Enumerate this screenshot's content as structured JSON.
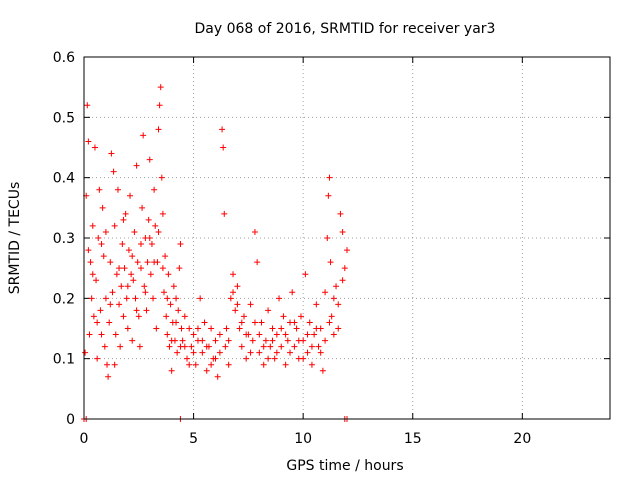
{
  "chart_data": {
    "type": "scatter",
    "title": "Day 068 of 2016, SRMTID for receiver yar3",
    "xlabel": "GPS time / hours",
    "ylabel": "SRMTID / TECUs",
    "xlim": [
      0,
      24
    ],
    "ylim": [
      0,
      0.6
    ],
    "xticks": [
      0,
      5,
      10,
      15,
      20
    ],
    "yticks": [
      0,
      0.1,
      0.2,
      0.3,
      0.4,
      0.5,
      0.6
    ],
    "xtick_labels": [
      "0",
      "5",
      "10",
      "15",
      "20"
    ],
    "ytick_labels": [
      "0",
      "0.1",
      "0.2",
      "0.3",
      "0.4",
      "0.5",
      "0.6"
    ],
    "grid": true,
    "marker": "+",
    "color": "#ff0000",
    "series": [
      {
        "name": "SRMTID",
        "points": [
          [
            0.0,
            0.0
          ],
          [
            0.1,
            0.0
          ],
          [
            4.4,
            0.0
          ],
          [
            11.9,
            0.0
          ],
          [
            12.0,
            0.0
          ],
          [
            0.05,
            0.11
          ],
          [
            0.1,
            0.37
          ],
          [
            0.15,
            0.52
          ],
          [
            0.2,
            0.46
          ],
          [
            0.25,
            0.14
          ],
          [
            0.3,
            0.26
          ],
          [
            0.35,
            0.2
          ],
          [
            0.4,
            0.32
          ],
          [
            0.45,
            0.17
          ],
          [
            0.5,
            0.45
          ],
          [
            0.55,
            0.23
          ],
          [
            0.6,
            0.1
          ],
          [
            0.65,
            0.3
          ],
          [
            0.7,
            0.38
          ],
          [
            0.75,
            0.18
          ],
          [
            0.8,
            0.14
          ],
          [
            0.85,
            0.35
          ],
          [
            0.9,
            0.27
          ],
          [
            0.95,
            0.12
          ],
          [
            1.0,
            0.2
          ],
          [
            1.05,
            0.09
          ],
          [
            1.1,
            0.07
          ],
          [
            1.15,
            0.16
          ],
          [
            1.2,
            0.26
          ],
          [
            1.25,
            0.44
          ],
          [
            1.3,
            0.21
          ],
          [
            1.35,
            0.41
          ],
          [
            1.4,
            0.32
          ],
          [
            1.45,
            0.14
          ],
          [
            1.5,
            0.24
          ],
          [
            1.55,
            0.38
          ],
          [
            1.6,
            0.19
          ],
          [
            1.65,
            0.12
          ],
          [
            1.7,
            0.22
          ],
          [
            1.75,
            0.29
          ],
          [
            1.8,
            0.17
          ],
          [
            1.85,
            0.25
          ],
          [
            1.9,
            0.34
          ],
          [
            1.95,
            0.2
          ],
          [
            2.0,
            0.15
          ],
          [
            2.05,
            0.28
          ],
          [
            2.1,
            0.37
          ],
          [
            2.15,
            0.24
          ],
          [
            2.2,
            0.13
          ],
          [
            2.25,
            0.23
          ],
          [
            2.3,
            0.31
          ],
          [
            2.35,
            0.2
          ],
          [
            2.4,
            0.42
          ],
          [
            2.45,
            0.26
          ],
          [
            2.5,
            0.17
          ],
          [
            2.55,
            0.12
          ],
          [
            2.6,
            0.29
          ],
          [
            2.65,
            0.35
          ],
          [
            2.7,
            0.47
          ],
          [
            2.75,
            0.22
          ],
          [
            2.8,
            0.3
          ],
          [
            2.85,
            0.18
          ],
          [
            2.9,
            0.26
          ],
          [
            2.95,
            0.33
          ],
          [
            3.0,
            0.43
          ],
          [
            3.05,
            0.24
          ],
          [
            3.1,
            0.29
          ],
          [
            3.15,
            0.2
          ],
          [
            3.2,
            0.38
          ],
          [
            3.25,
            0.32
          ],
          [
            3.3,
            0.15
          ],
          [
            3.35,
            0.26
          ],
          [
            3.4,
            0.48
          ],
          [
            3.45,
            0.52
          ],
          [
            3.5,
            0.55
          ],
          [
            3.55,
            0.4
          ],
          [
            3.6,
            0.34
          ],
          [
            3.65,
            0.21
          ],
          [
            3.7,
            0.27
          ],
          [
            3.75,
            0.17
          ],
          [
            3.8,
            0.14
          ],
          [
            3.85,
            0.24
          ],
          [
            3.9,
            0.12
          ],
          [
            3.95,
            0.19
          ],
          [
            4.0,
            0.08
          ],
          [
            4.05,
            0.16
          ],
          [
            4.1,
            0.22
          ],
          [
            4.15,
            0.13
          ],
          [
            4.2,
            0.2
          ],
          [
            4.25,
            0.11
          ],
          [
            4.3,
            0.18
          ],
          [
            4.35,
            0.25
          ],
          [
            4.4,
            0.29
          ],
          [
            4.45,
            0.15
          ],
          [
            0.2,
            0.28
          ],
          [
            0.4,
            0.24
          ],
          [
            0.6,
            0.16
          ],
          [
            0.8,
            0.29
          ],
          [
            1.0,
            0.31
          ],
          [
            1.2,
            0.19
          ],
          [
            1.4,
            0.09
          ],
          [
            1.6,
            0.25
          ],
          [
            1.8,
            0.33
          ],
          [
            2.0,
            0.22
          ],
          [
            2.2,
            0.27
          ],
          [
            2.4,
            0.18
          ],
          [
            2.6,
            0.25
          ],
          [
            2.8,
            0.21
          ],
          [
            3.0,
            0.3
          ],
          [
            3.2,
            0.26
          ],
          [
            3.4,
            0.31
          ],
          [
            3.6,
            0.25
          ],
          [
            3.8,
            0.2
          ],
          [
            4.0,
            0.13
          ],
          [
            4.2,
            0.16
          ],
          [
            4.4,
            0.12
          ],
          [
            4.5,
            0.13
          ],
          [
            4.6,
            0.17
          ],
          [
            4.7,
            0.1
          ],
          [
            4.8,
            0.15
          ],
          [
            4.9,
            0.12
          ],
          [
            5.0,
            0.14
          ],
          [
            5.1,
            0.09
          ],
          [
            5.2,
            0.13
          ],
          [
            5.3,
            0.2
          ],
          [
            5.4,
            0.11
          ],
          [
            5.5,
            0.16
          ],
          [
            5.6,
            0.08
          ],
          [
            5.7,
            0.12
          ],
          [
            5.8,
            0.15
          ],
          [
            5.9,
            0.1
          ],
          [
            6.0,
            0.13
          ],
          [
            6.1,
            0.07
          ],
          [
            6.2,
            0.11
          ],
          [
            6.3,
            0.48
          ],
          [
            6.35,
            0.45
          ],
          [
            6.4,
            0.34
          ],
          [
            6.45,
            0.12
          ],
          [
            6.5,
            0.15
          ],
          [
            6.6,
            0.09
          ],
          [
            6.7,
            0.2
          ],
          [
            6.8,
            0.24
          ],
          [
            6.9,
            0.18
          ],
          [
            7.0,
            0.22
          ],
          [
            7.1,
            0.15
          ],
          [
            7.2,
            0.12
          ],
          [
            7.3,
            0.17
          ],
          [
            7.4,
            0.1
          ],
          [
            7.5,
            0.14
          ],
          [
            7.6,
            0.19
          ],
          [
            7.7,
            0.13
          ],
          [
            7.8,
            0.31
          ],
          [
            7.9,
            0.26
          ],
          [
            8.0,
            0.11
          ],
          [
            8.1,
            0.16
          ],
          [
            8.2,
            0.09
          ],
          [
            8.3,
            0.13
          ],
          [
            8.4,
            0.18
          ],
          [
            8.5,
            0.12
          ],
          [
            8.6,
            0.15
          ],
          [
            8.7,
            0.1
          ],
          [
            8.8,
            0.14
          ],
          [
            8.9,
            0.2
          ],
          [
            9.0,
            0.12
          ],
          [
            9.1,
            0.17
          ],
          [
            9.2,
            0.09
          ],
          [
            9.3,
            0.13
          ],
          [
            9.4,
            0.16
          ],
          [
            9.5,
            0.21
          ],
          [
            9.6,
            0.12
          ],
          [
            9.7,
            0.15
          ],
          [
            9.8,
            0.1
          ],
          [
            9.9,
            0.17
          ],
          [
            10.0,
            0.13
          ],
          [
            10.1,
            0.24
          ],
          [
            10.2,
            0.11
          ],
          [
            10.3,
            0.16
          ],
          [
            10.4,
            0.09
          ],
          [
            10.5,
            0.14
          ],
          [
            10.6,
            0.19
          ],
          [
            10.7,
            0.12
          ],
          [
            10.8,
            0.15
          ],
          [
            10.9,
            0.08
          ],
          [
            11.0,
            0.21
          ],
          [
            11.1,
            0.3
          ],
          [
            11.15,
            0.37
          ],
          [
            11.2,
            0.4
          ],
          [
            11.25,
            0.26
          ],
          [
            11.3,
            0.17
          ],
          [
            11.4,
            0.2
          ],
          [
            11.5,
            0.22
          ],
          [
            11.6,
            0.15
          ],
          [
            11.7,
            0.34
          ],
          [
            11.8,
            0.31
          ],
          [
            11.9,
            0.25
          ],
          [
            12.0,
            0.28
          ],
          [
            4.6,
            0.12
          ],
          [
            4.8,
            0.09
          ],
          [
            5.0,
            0.11
          ],
          [
            5.2,
            0.15
          ],
          [
            5.4,
            0.13
          ],
          [
            5.6,
            0.12
          ],
          [
            5.8,
            0.09
          ],
          [
            6.0,
            0.1
          ],
          [
            6.2,
            0.14
          ],
          [
            6.6,
            0.13
          ],
          [
            6.8,
            0.21
          ],
          [
            7.0,
            0.19
          ],
          [
            7.2,
            0.16
          ],
          [
            7.4,
            0.14
          ],
          [
            7.6,
            0.11
          ],
          [
            7.8,
            0.16
          ],
          [
            8.0,
            0.14
          ],
          [
            8.2,
            0.12
          ],
          [
            8.4,
            0.1
          ],
          [
            8.6,
            0.13
          ],
          [
            8.8,
            0.11
          ],
          [
            9.0,
            0.15
          ],
          [
            9.2,
            0.14
          ],
          [
            9.4,
            0.11
          ],
          [
            9.6,
            0.16
          ],
          [
            9.8,
            0.13
          ],
          [
            10.0,
            0.1
          ],
          [
            10.2,
            0.14
          ],
          [
            10.4,
            0.12
          ],
          [
            10.6,
            0.15
          ],
          [
            10.8,
            0.11
          ],
          [
            11.0,
            0.13
          ],
          [
            11.2,
            0.16
          ],
          [
            11.4,
            0.14
          ],
          [
            11.6,
            0.19
          ],
          [
            11.8,
            0.23
          ]
        ]
      }
    ]
  }
}
